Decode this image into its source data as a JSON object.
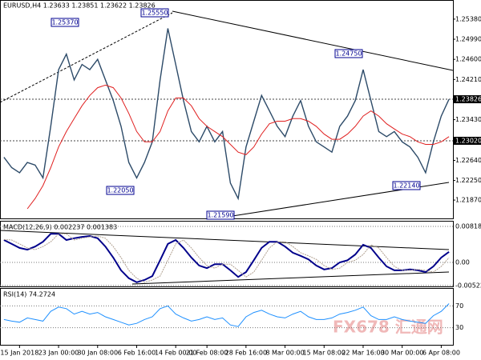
{
  "watermark": "FX678 汇通网",
  "chart_data": [
    {
      "type": "line",
      "title": "EURUSD,H4  1.23633 1.23851 1.23622 1.23826",
      "categories": [
        null,
        null,
        "15 Jan 2018",
        null,
        null,
        null,
        null,
        "23 Jan 00:00",
        null,
        null,
        null,
        null,
        "30 Jan 08:00",
        null,
        null,
        null,
        null,
        "6 Feb 16:00",
        null,
        null,
        null,
        null,
        "14 Feb 00:00",
        null,
        null,
        null,
        "21 Feb 08:00",
        null,
        null,
        null,
        null,
        "28 Feb 16:00",
        null,
        null,
        null,
        null,
        "8 Mar 00:00",
        null,
        null,
        null,
        null,
        "15 Mar 08:00",
        null,
        null,
        null,
        null,
        "22 Mar 16:00",
        null,
        null,
        null,
        null,
        "30 Mar 00:00",
        null,
        null,
        null,
        null,
        "6 Apr 08:00",
        null
      ],
      "series": [
        {
          "color": "#2c4a68",
          "values": [
            1.227,
            1.225,
            1.224,
            1.226,
            1.2255,
            1.223,
            1.233,
            1.244,
            1.247,
            1.242,
            1.245,
            1.244,
            1.246,
            1.242,
            1.238,
            1.233,
            1.226,
            1.223,
            1.226,
            1.23,
            1.242,
            1.252,
            1.245,
            1.238,
            1.232,
            1.23,
            1.233,
            1.23,
            1.232,
            1.222,
            1.219,
            1.229,
            1.234,
            1.239,
            1.236,
            1.233,
            1.231,
            1.235,
            1.238,
            1.233,
            1.23,
            1.229,
            1.228,
            1.233,
            1.235,
            1.238,
            1.244,
            1.238,
            1.232,
            1.231,
            1.232,
            1.23,
            1.229,
            1.227,
            1.224,
            1.23,
            1.235,
            1.23826
          ]
        },
        {
          "color": "#e02020",
          "values": [
            null,
            null,
            null,
            1.217,
            1.219,
            1.2215,
            1.225,
            1.229,
            1.232,
            1.2345,
            1.237,
            1.239,
            1.2405,
            1.241,
            1.2405,
            1.2385,
            1.2355,
            1.232,
            1.23,
            1.23,
            1.232,
            1.236,
            1.2385,
            1.2385,
            1.237,
            1.2345,
            1.233,
            1.232,
            1.231,
            1.2295,
            1.228,
            1.2275,
            1.229,
            1.2315,
            1.2335,
            1.234,
            1.234,
            1.2345,
            1.2345,
            1.234,
            1.233,
            1.2315,
            1.2305,
            1.2305,
            1.2315,
            1.233,
            1.235,
            1.236,
            1.235,
            1.2335,
            1.2325,
            1.2315,
            1.231,
            1.23,
            1.2295,
            1.2295,
            1.23,
            1.231
          ]
        }
      ],
      "ylim": [
        1.2153,
        1.2572
      ],
      "yticks": [
        {
          "value": 1.2538,
          "label": "1.25380"
        },
        {
          "value": 1.2499,
          "label": "1.24990"
        },
        {
          "value": 1.246,
          "label": "1.24600"
        },
        {
          "value": 1.2421,
          "label": "1.24210"
        },
        1.23826,
        {
          "value": 1.2343,
          "label": "1.23430"
        },
        {
          "value": 1.2302,
          "label": "1.23020"
        },
        {
          "value": 1.2264,
          "label": "1.22640"
        },
        {
          "value": 1.2225,
          "label": "1.22250"
        },
        {
          "value": 1.2187,
          "label": "1.21870"
        }
      ],
      "marked_ticks": [
        4,
        6
      ],
      "annotations": [
        {
          "value": 1.2537,
          "label": "1.25370"
        },
        {
          "value": 1.2555,
          "label": "1.25550"
        },
        {
          "value": 1.2205,
          "label": "1.22050"
        },
        {
          "value": 1.2159,
          "label": "1.21590"
        },
        {
          "value": 1.2475,
          "label": "1.24750"
        },
        {
          "value": 1.2214,
          "label": "1.22140"
        }
      ]
    },
    {
      "type": "line",
      "title": "MACD(12,26,9) 0.002237 0.001383",
      "series": [
        {
          "color": "#00008b",
          "values": [
            0.0051,
            0.0042,
            0.0033,
            0.0029,
            0.0036,
            0.0047,
            0.0065,
            0.0065,
            0.0051,
            0.0055,
            0.0058,
            0.006,
            0.0055,
            0.0036,
            0.0011,
            -0.0018,
            -0.0036,
            -0.0045,
            -0.004,
            -0.0031,
            0.0005,
            0.0042,
            0.0051,
            0.0033,
            0.0011,
            -0.0007,
            -0.0013,
            -0.0004,
            -0.0004,
            -0.0018,
            -0.0033,
            -0.0022,
            0.0005,
            0.0033,
            0.0047,
            0.0047,
            0.0036,
            0.0022,
            0.0015,
            0.0007,
            -0.0007,
            -0.0016,
            -0.0013,
            0,
            0.0005,
            0.0018,
            0.004,
            0.0033,
            0.0011,
            -0.0009,
            -0.0018,
            -0.0018,
            -0.0016,
            -0.0018,
            -0.0022,
            -0.0009,
            0.0011,
            0.0024
          ]
        },
        {
          "color": "#b0a090",
          "values": [
            0.0052,
            0.0051,
            0.0042,
            0.0033,
            0.0029,
            0.0036,
            0.0047,
            0.0065,
            0.0065,
            0.0051,
            0.0055,
            0.0058,
            0.006,
            0.0055,
            0.0036,
            0.0011,
            -0.0018,
            -0.0036,
            -0.0045,
            -0.004,
            -0.0031,
            0.0005,
            0.0042,
            0.0051,
            0.0033,
            0.0011,
            -0.0007,
            -0.0013,
            -0.0004,
            -0.0004,
            -0.0018,
            -0.0033,
            -0.0022,
            0.0005,
            0.0033,
            0.0047,
            0.0047,
            0.0036,
            0.0022,
            0.0015,
            0.0007,
            -0.0007,
            -0.0016,
            -0.0013,
            0,
            0.0005,
            0.0018,
            0.004,
            0.0033,
            0.0011,
            -0.0009,
            -0.0018,
            -0.0018,
            -0.0016,
            -0.0018,
            -0.0022,
            -0.0009,
            0.0011
          ]
        }
      ],
      "ylim": [
        -0.00545,
        0.0091
      ],
      "yticks": [
        0.008182,
        {
          "value": 0,
          "label": "0.00"
        },
        -0.005223
      ]
    },
    {
      "type": "line",
      "title": "RSI(14) 74.2724",
      "series": [
        {
          "color": "#1e90ff",
          "values": [
            45,
            42,
            40,
            48,
            45,
            42,
            60,
            68,
            65,
            55,
            60,
            55,
            58,
            50,
            45,
            40,
            35,
            38,
            45,
            50,
            65,
            70,
            55,
            48,
            42,
            45,
            50,
            45,
            48,
            35,
            32,
            50,
            58,
            62,
            55,
            50,
            48,
            55,
            60,
            50,
            45,
            45,
            48,
            55,
            58,
            62,
            68,
            52,
            45,
            45,
            50,
            45,
            42,
            40,
            38,
            52,
            60,
            74.2724
          ]
        }
      ],
      "ylim": [
        0,
        100
      ],
      "yticks": [
        70,
        30
      ]
    }
  ]
}
